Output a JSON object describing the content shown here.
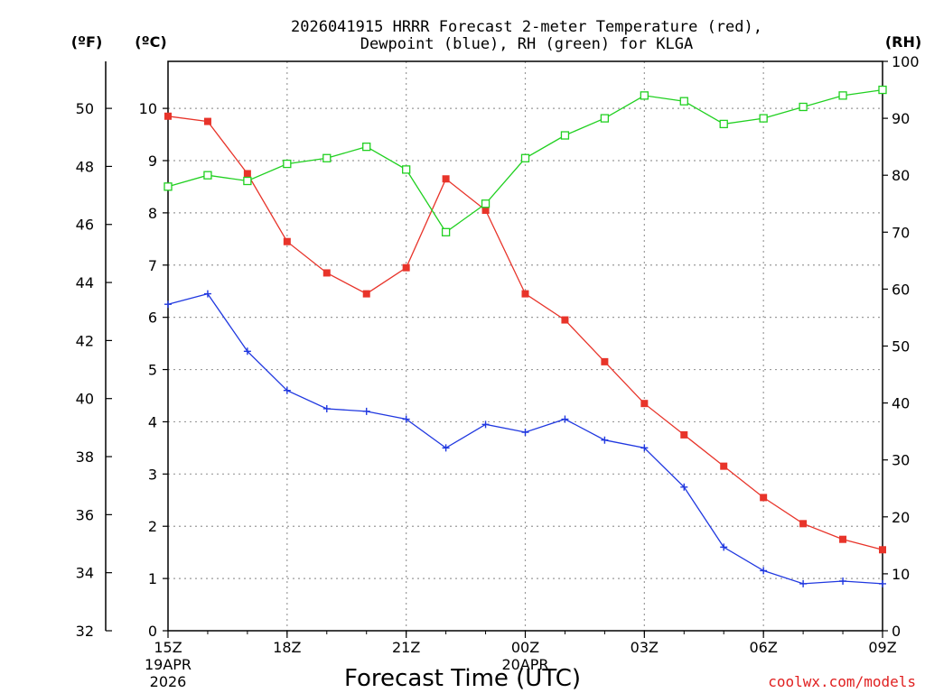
{
  "colors": {
    "temperature": "#e8342a",
    "dewpoint": "#2038e0",
    "rh": "#20d020",
    "credit": "#e02020",
    "grid": "#9a9a9a"
  },
  "chart_data": {
    "type": "line",
    "title_line1": "2026041915 HRRR Forecast 2-meter Temperature (red),",
    "title_line2": "Dewpoint (blue), RH (green) for KLGA",
    "xlabel": "Forecast Time (UTC)",
    "credit": "coolwx.com/models",
    "units": {
      "fahrenheit": "(ºF)",
      "celsius": "(ºC)",
      "rh": "(RH)"
    },
    "x_hours": [
      0,
      1,
      2,
      3,
      4,
      5,
      6,
      7,
      8,
      9,
      10,
      11,
      12,
      13,
      14,
      15,
      16,
      17,
      18
    ],
    "x_ticks": [
      {
        "hour": 0,
        "label": "15Z",
        "sub1": "19APR",
        "sub2": "2026"
      },
      {
        "hour": 3,
        "label": "18Z"
      },
      {
        "hour": 6,
        "label": "21Z"
      },
      {
        "hour": 9,
        "label": "00Z",
        "sub1": "20APR"
      },
      {
        "hour": 12,
        "label": "03Z"
      },
      {
        "hour": 15,
        "label": "06Z"
      },
      {
        "hour": 18,
        "label": "09Z"
      }
    ],
    "ylim_celsius": [
      0,
      10.9
    ],
    "ylim_rh": [
      0,
      100
    ],
    "celsius_ticks": [
      "0",
      "1",
      "2",
      "3",
      "4",
      "5",
      "6",
      "7",
      "8",
      "9",
      "10"
    ],
    "fahrenheit_ticks": [
      "32",
      "34",
      "36",
      "38",
      "40",
      "42",
      "44",
      "46",
      "48",
      "50"
    ],
    "rh_ticks": [
      "0",
      "10",
      "20",
      "30",
      "40",
      "50",
      "60",
      "70",
      "80",
      "90",
      "100"
    ],
    "series": [
      {
        "name": "Temperature",
        "axis": "celsius",
        "marker": "filled-square",
        "values": [
          9.85,
          9.75,
          8.75,
          7.45,
          6.85,
          6.45,
          6.95,
          8.65,
          8.05,
          6.45,
          5.95,
          5.15,
          4.35,
          3.75,
          3.15,
          2.55,
          2.05,
          1.75,
          1.55
        ]
      },
      {
        "name": "Dewpoint",
        "axis": "celsius",
        "marker": "plus",
        "values": [
          6.25,
          6.45,
          5.35,
          4.6,
          4.25,
          4.2,
          4.05,
          3.5,
          3.95,
          3.8,
          4.05,
          3.65,
          3.5,
          2.75,
          1.6,
          1.15,
          0.9,
          0.95,
          0.9
        ]
      },
      {
        "name": "RH",
        "axis": "rh",
        "marker": "open-square",
        "values": [
          78,
          80,
          79,
          82,
          83,
          85,
          81,
          70,
          75,
          83,
          87,
          90,
          94,
          93,
          89,
          90,
          92,
          94,
          95
        ]
      }
    ]
  }
}
